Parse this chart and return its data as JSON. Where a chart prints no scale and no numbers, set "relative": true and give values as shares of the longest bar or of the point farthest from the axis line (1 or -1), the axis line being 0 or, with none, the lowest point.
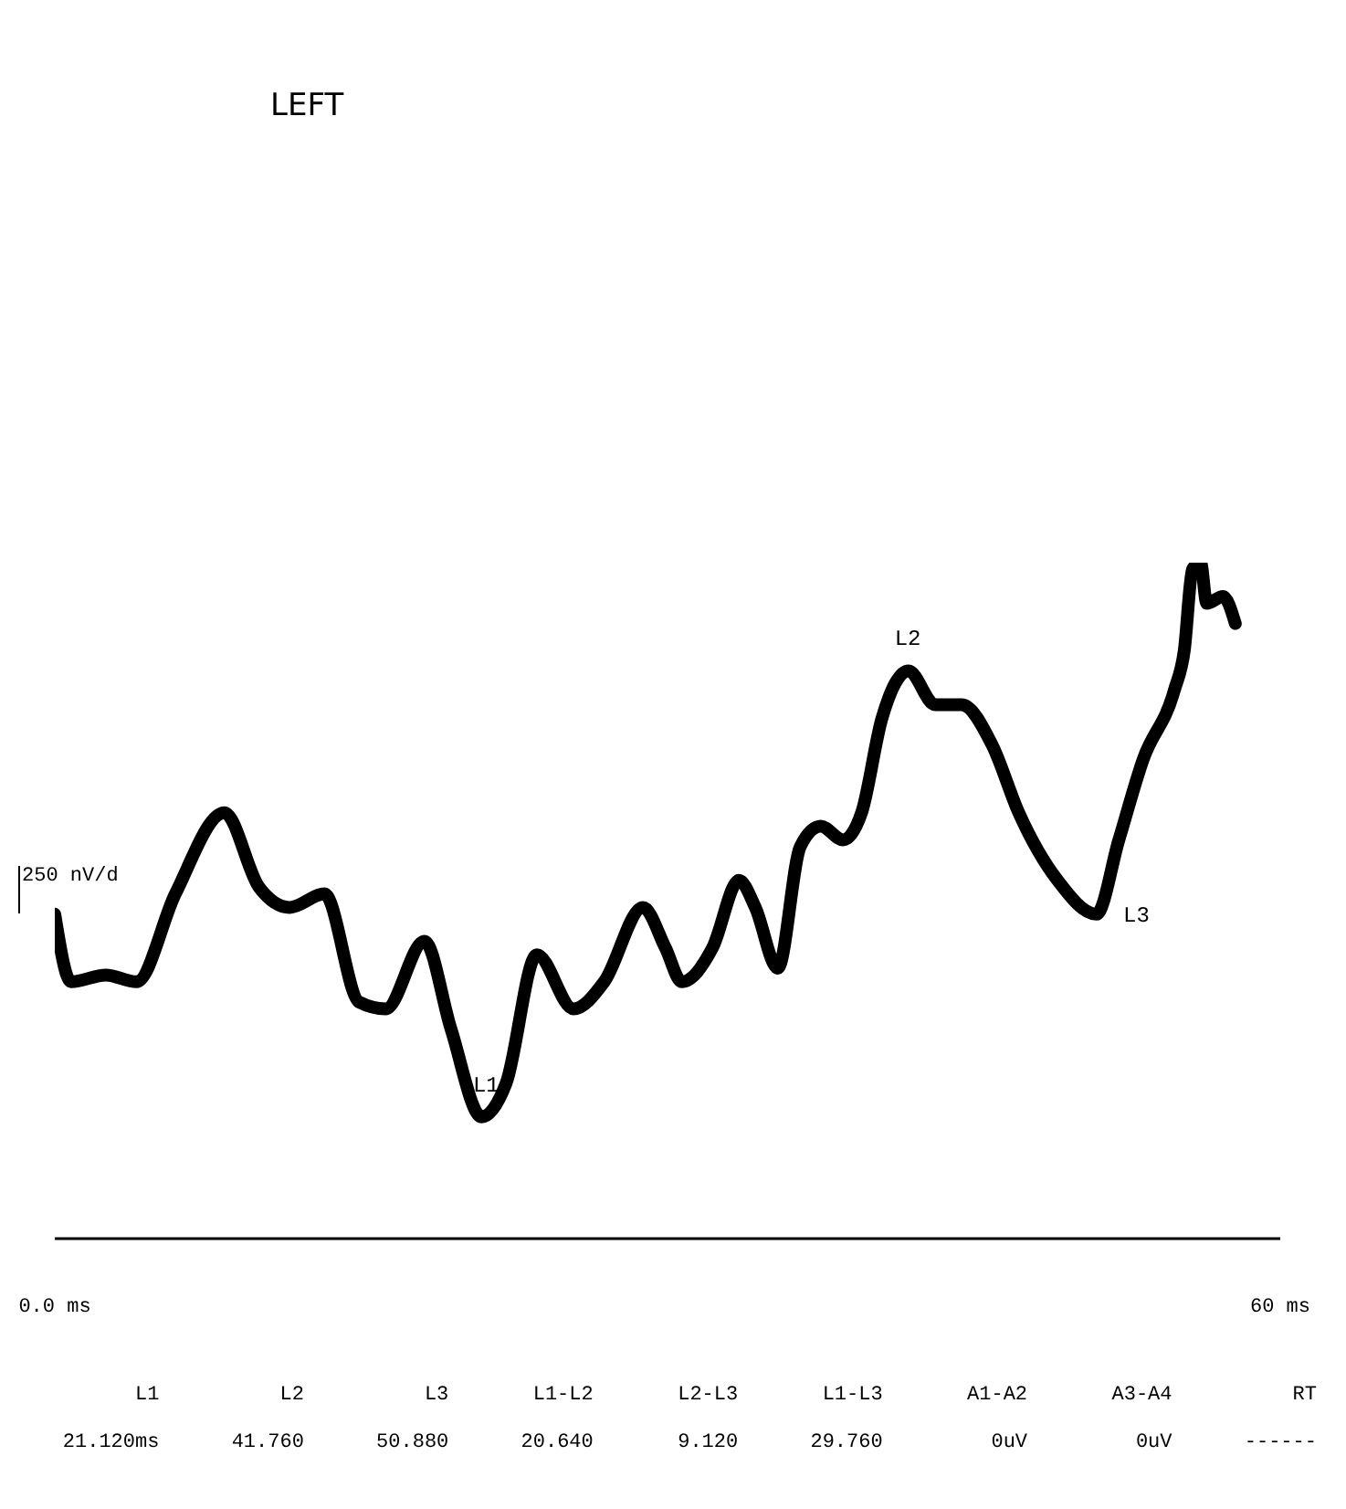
{
  "chart_data": {
    "type": "line",
    "title": "LEFT",
    "relative": true,
    "x": [
      0,
      0.8,
      2.5,
      4.0,
      5.9,
      8.3,
      10.0,
      11.5,
      13.2,
      14.9,
      16.2,
      18.1,
      19.4,
      20.9,
      22.1,
      23.6,
      25.4,
      26.9,
      28.8,
      29.9,
      30.7,
      32.2,
      33.5,
      34.3,
      35.4,
      36.5,
      37.5,
      38.6,
      39.5,
      40.5,
      41.8,
      43.1,
      44.4,
      45.9,
      47.2,
      49.1,
      51.0,
      52.1,
      53.3,
      54.8,
      55.3,
      55.7,
      56.1,
      56.4,
      57.2,
      57.8
    ],
    "series": [
      {
        "color": "#000000",
        "values": [
          0.48,
          0.38,
          0.39,
          0.38,
          0.51,
          0.63,
          0.52,
          0.49,
          0.51,
          0.35,
          0.34,
          0.44,
          0.31,
          0.18,
          0.23,
          0.42,
          0.34,
          0.38,
          0.49,
          0.43,
          0.38,
          0.43,
          0.53,
          0.49,
          0.4,
          0.58,
          0.61,
          0.59,
          0.63,
          0.77,
          0.84,
          0.79,
          0.79,
          0.73,
          0.63,
          0.53,
          0.48,
          0.59,
          0.71,
          0.81,
          0.87,
          0.99,
          1.0,
          0.94,
          0.95,
          0.91
        ]
      }
    ],
    "xlim": [
      0,
      60
    ],
    "xticks": [
      {
        "value": 0,
        "label": "0.0 ms"
      },
      {
        "value": 60,
        "label": "60 ms"
      }
    ],
    "marker": "none",
    "annotations": [
      {
        "text": "L1",
        "x": 21.12,
        "y": 0.18
      },
      {
        "text": "L2",
        "x": 41.76,
        "y": 0.84
      },
      {
        "text": "L3",
        "x": 50.88,
        "y": 0.48
      },
      "250 nV/d",
      "L1",
      "L2",
      "L3",
      "L1-L2",
      "L2-L3",
      "L1-L3",
      "A1-A2",
      "A3-A4",
      "RT",
      "21.120ms",
      "41.760",
      "50.880",
      "20.640",
      "9.120",
      "29.760",
      "0uV",
      "0uV",
      "------"
    ]
  }
}
